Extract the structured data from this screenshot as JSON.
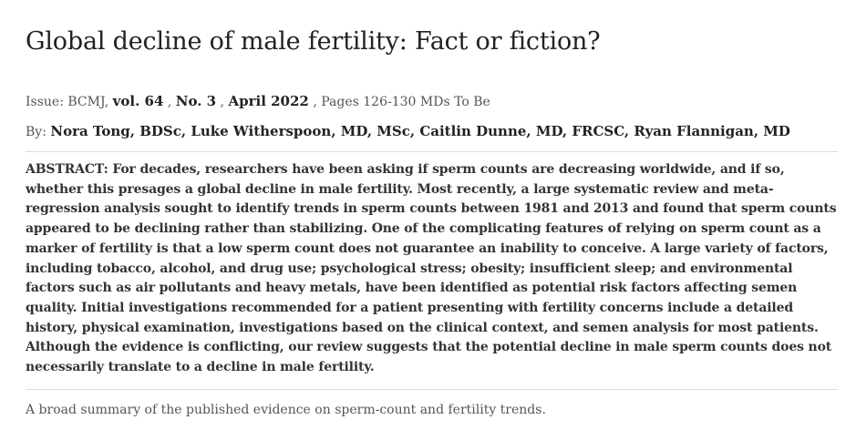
{
  "article": {
    "title": "Global decline of male fertility: Fact or fiction?",
    "issue": {
      "prefix": "Issue: BCMJ, ",
      "volume": "vol. 64",
      "sep1": " , ",
      "number": "No. 3",
      "sep2": " , ",
      "date": "April 2022",
      "sep3": " , ",
      "pages": "Pages 126-130 MDs To Be"
    },
    "byline": {
      "prefix": "By: ",
      "authors": "Nora Tong, BDSc, Luke Witherspoon, MD, MSc, Caitlin Dunne, MD, FRCSC, Ryan Flannigan, MD"
    },
    "abstract": "ABSTRACT: For decades, researchers have been asking if sperm counts are decreasing worldwide, and if so, whether this presages a global decline in male fertility. Most recently, a large systematic review and meta-regression analysis sought to identify trends in sperm counts between 1981 and 2013 and found that sperm counts appeared to be declining rather than stabilizing. One of the complicating features of relying on sperm count as a marker of fertility is that a low sperm count does not guarantee an inability to conceive. A large variety of factors, including tobacco, alcohol, and drug use; psychological stress; obesity; insufficient sleep; and environmental factors such as air pollutants and heavy metals, have been identified as potential risk factors affecting semen quality. Initial investigations recommended for a patient presenting with fertility concerns include a detailed history, physical examination, investigations based on the clinical context, and semen analysis for most patients. Although the evidence is conflicting, our review suggests that the potential decline in male sperm counts does not necessarily translate to a decline in male fertility.",
    "caption": "A broad summary of the published evidence on sperm-count and fertility trends."
  }
}
